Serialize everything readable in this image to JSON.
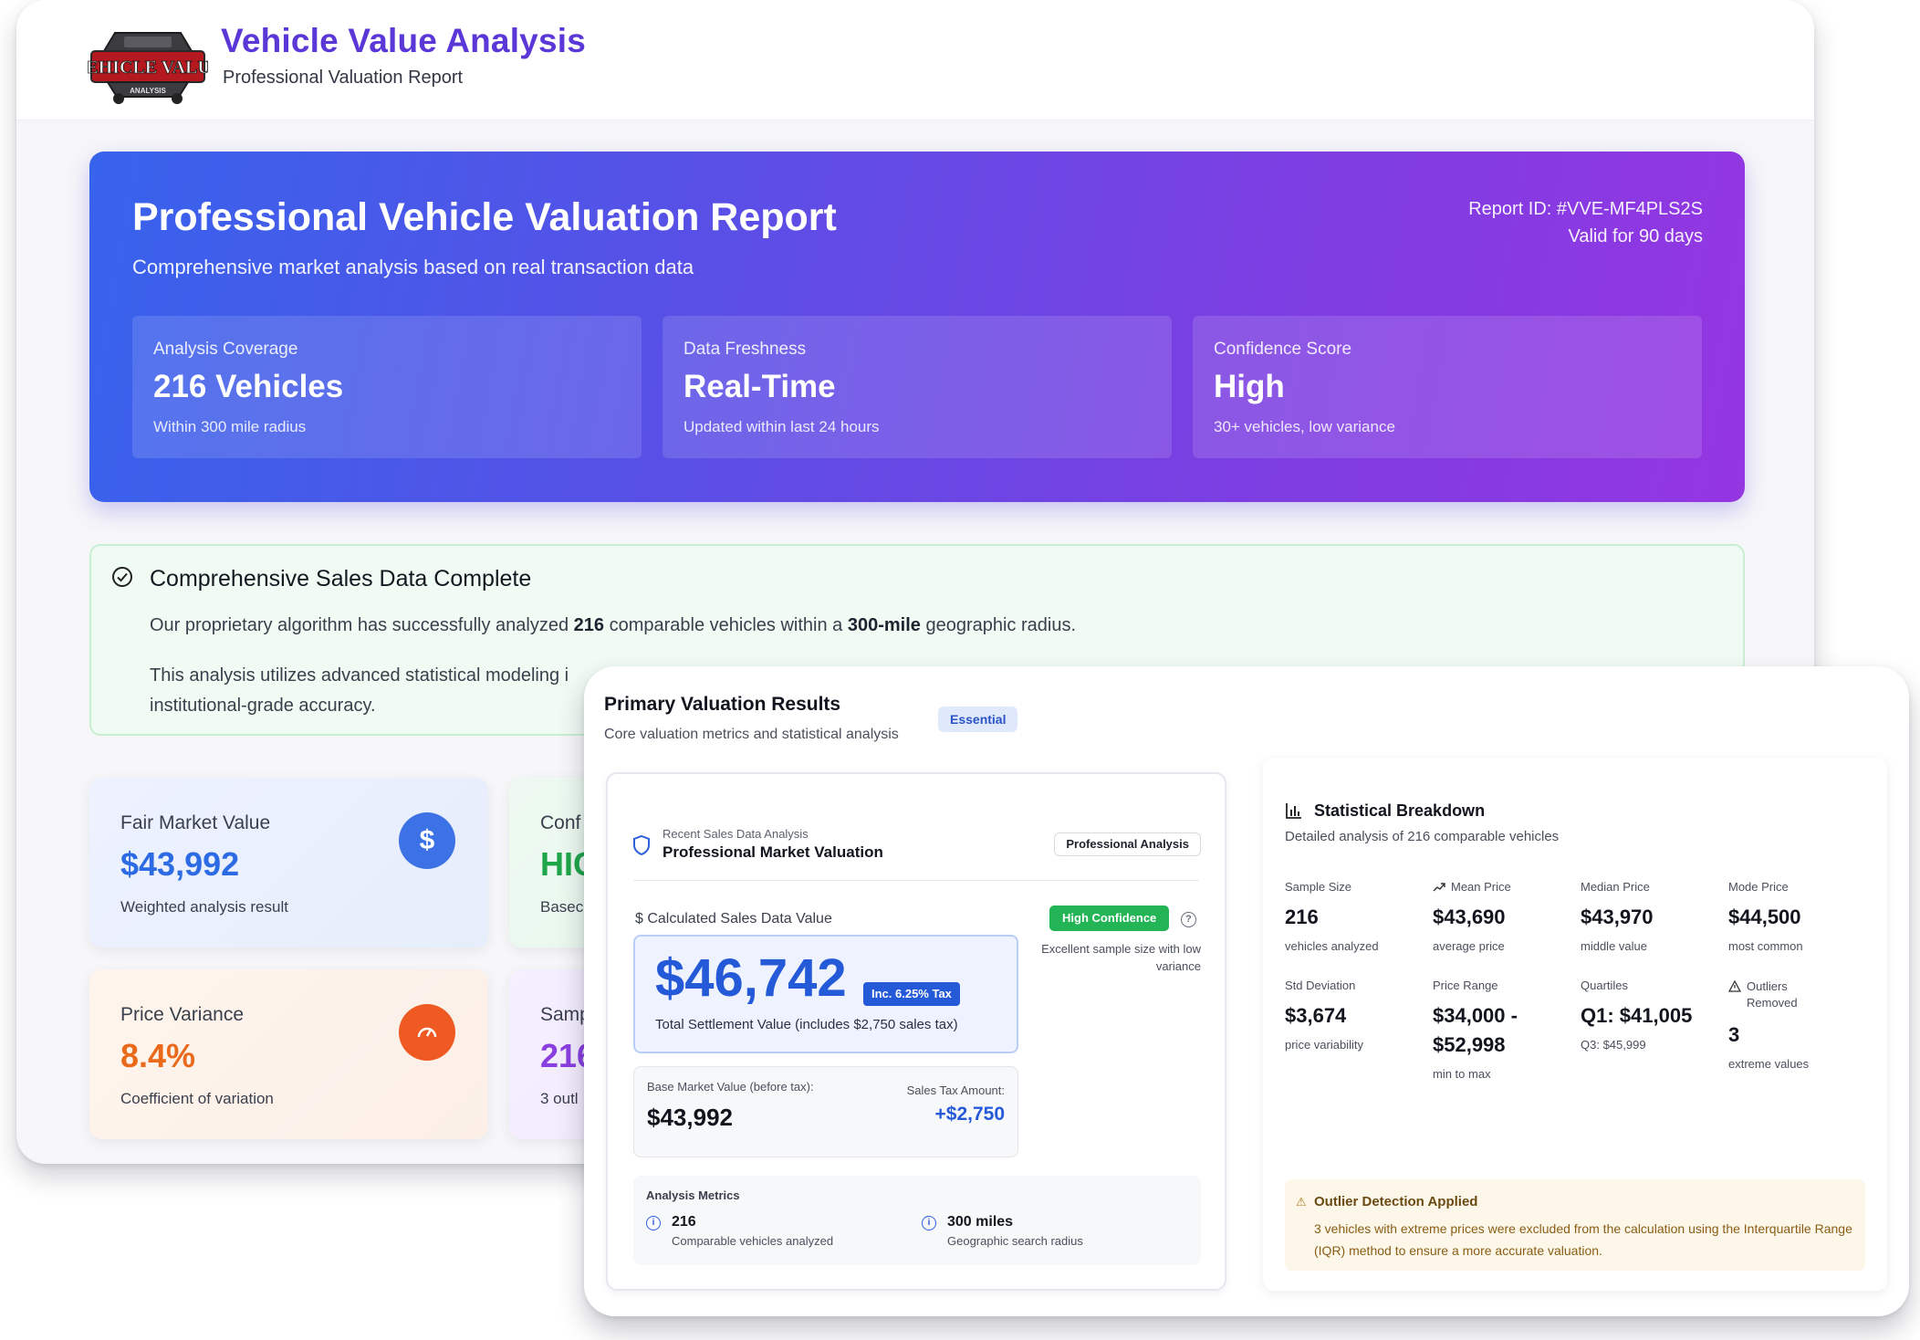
{
  "app": {
    "title": "Vehicle Value Analysis",
    "subtitle": "Professional Valuation Report",
    "logo_text": "VEHICLE VALUE",
    "logo_subtext": "ANALYSIS"
  },
  "hero": {
    "title": "Professional Vehicle Valuation Report",
    "subtitle": "Comprehensive market analysis based on real transaction data",
    "report_id": "Report ID: #VVE-MF4PLS2S",
    "validity": "Valid for 90 days",
    "cards": [
      {
        "label": "Analysis Coverage",
        "value": "216 Vehicles",
        "desc": "Within 300 mile radius"
      },
      {
        "label": "Data Freshness",
        "value": "Real-Time",
        "desc": "Updated within last 24 hours"
      },
      {
        "label": "Confidence Score",
        "value": "High",
        "desc": "30+ vehicles, low variance"
      }
    ]
  },
  "notice": {
    "title": "Comprehensive Sales Data Complete",
    "p1_prefix": "Our proprietary algorithm has successfully analyzed ",
    "p1_count": "216",
    "p1_mid": " comparable vehicles within a ",
    "p1_radius": "300-mile",
    "p1_suffix": " geographic radius.",
    "p2": "This analysis utilizes advanced statistical modeling i",
    "p3": "institutional-grade accuracy."
  },
  "metrics": [
    {
      "label": "Fair Market Value",
      "value": "$43,992",
      "desc": "Weighted analysis result",
      "icon": "dollar-icon",
      "color": "#2d6be4"
    },
    {
      "label": "Conf",
      "value": "HIC",
      "desc": "Basec",
      "color": "#1fa64a"
    },
    {
      "label": "Price Variance",
      "value": "8.4%",
      "desc": "Coefficient of variation",
      "icon": "gauge-icon",
      "color": "#ea6a1c"
    },
    {
      "label": "Samp",
      "value": "216",
      "desc": "3 outl",
      "color": "#8a3fe0"
    }
  ],
  "primary": {
    "title": "Primary Valuation Results",
    "badge": "Essential",
    "subtitle": "Core valuation metrics and statistical analysis",
    "valuation": {
      "kicker": "Recent Sales Data Analysis",
      "heading": "Professional Market Valuation",
      "chip": "Professional Analysis",
      "calc_label": "$ Calculated Sales Data Value",
      "confidence_badge": "High Confidence",
      "confidence_note": "Excellent sample size with low variance",
      "price": "$46,742",
      "tax_badge": "Inc. 6.25% Tax",
      "price_caption": "Total Settlement Value (includes $2,750 sales tax)",
      "base_label": "Base Market Value (before tax):",
      "base_value": "$43,992",
      "tax_label": "Sales Tax Amount:",
      "tax_value": "+$2,750",
      "metrics_title": "Analysis Metrics",
      "metrics": [
        {
          "value": "216",
          "desc": "Comparable vehicles analyzed"
        },
        {
          "value": "300 miles",
          "desc": "Geographic search radius"
        }
      ]
    },
    "stats": {
      "title": "Statistical Breakdown",
      "subtitle": "Detailed analysis of 216 comparable vehicles",
      "items": [
        {
          "label": "Sample Size",
          "value": "216",
          "desc": "vehicles analyzed"
        },
        {
          "label": "Mean Price",
          "value": "$43,690",
          "desc": "average price",
          "icon": "trend-up-icon"
        },
        {
          "label": "Median Price",
          "value": "$43,970",
          "desc": "middle value"
        },
        {
          "label": "Mode Price",
          "value": "$44,500",
          "desc": "most common"
        },
        {
          "label": "Std Deviation",
          "value": "$3,674",
          "desc": "price variability"
        },
        {
          "label": "Price Range",
          "value": "$34,000 - $52,998",
          "desc": "min to max"
        },
        {
          "label": "Quartiles",
          "value": "Q1: $41,005",
          "desc": "Q3: $45,999"
        },
        {
          "label": "Outliers Removed",
          "value": "3",
          "desc": "extreme values",
          "icon": "warning-icon"
        }
      ],
      "outlier_title": "Outlier Detection Applied",
      "outlier_text": "3 vehicles with extreme prices were excluded from the calculation using the Interquartile Range (IQR) method to ensure a more accurate valuation."
    }
  }
}
